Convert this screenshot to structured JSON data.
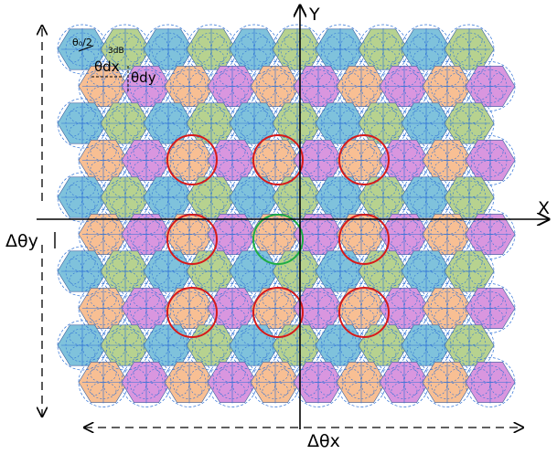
{
  "labels": {
    "x_axis": "X",
    "y_axis": "Y",
    "delta_theta_x": "Δθx",
    "delta_theta_y": "Δθy",
    "theta_0_2": "θ₀/2",
    "theta_3db": "3dB",
    "theta_dx": "θdx",
    "theta_dy": "θdy"
  },
  "colors": {
    "blue": "#7fc2dc",
    "green": "#b7d28f",
    "orange": "#f8bf93",
    "purple": "#d996df",
    "cell_outline": "#3a62a0",
    "beam_outline": "#2b6fd6",
    "red_highlight": "#d71a1a",
    "green_highlight": "#1fae43"
  },
  "grid": {
    "row_pattern_top_down": [
      "blue-green",
      "orange-purple",
      "blue-green",
      "orange-purple",
      "blue-green",
      "orange-purple",
      "blue-green",
      "orange-purple",
      "blue-green",
      "orange-purple"
    ],
    "red_circles": 8,
    "green_circles": 1
  }
}
